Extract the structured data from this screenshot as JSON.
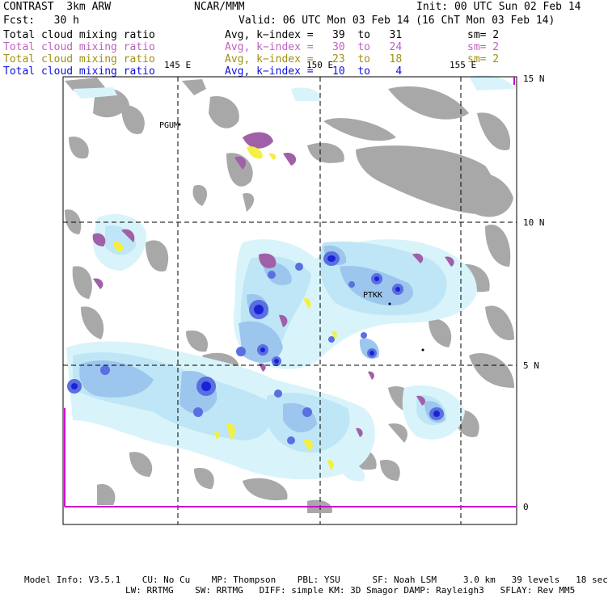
{
  "header": {
    "model": "CONTRAST  3km ARW",
    "center": "NCAR/MMM",
    "init": "Init: 00 UTC Sun 02 Feb 14",
    "fcst": "Fcst:   30 h",
    "valid": "Valid: 06 UTC Mon 03 Feb 14 (16 ChT Mon 03 Feb 14)"
  },
  "fields": [
    {
      "name": "Total cloud mixing ratio",
      "avg": "Avg, k−index =   39  to   31",
      "sm": "sm= 2",
      "color": "#000000"
    },
    {
      "name": "Total cloud mixing ratio",
      "avg": "Avg, k−index =   30  to   24",
      "sm": "sm= 2",
      "color": "#c060c0"
    },
    {
      "name": "Total cloud mixing ratio",
      "avg": "Avg, k−index =   23  to   18",
      "sm": "sm= 2",
      "color": "#a09010"
    },
    {
      "name": "Total cloud mixing ratio",
      "avg": "Avg, k−index =   10  to    4",
      "sm": "",
      "color": "#1010e0"
    }
  ],
  "axes": {
    "lon_labels": [
      "145 E",
      "150 E",
      "155 E"
    ],
    "lat_labels": [
      "15 N",
      "10 N",
      "5 N",
      "0"
    ]
  },
  "stations": [
    {
      "id": "PGUM"
    },
    {
      "id": "PTKK"
    }
  ],
  "footer": {
    "line1": "Model Info: V3.5.1    CU: No Cu    MP: Thompson    PBL: YSU      SF: Noah LSM     3.0 km   39 levels   18 sec",
    "line2": "LW: RRTMG    SW: RRTMG   DIFF: simple KM: 3D Smagor DAMP: Rayleigh3   SFLAY: Rev MM5"
  },
  "colors": {
    "gray": "#a8a8a8",
    "pale": "#d8f4fa",
    "lightblue": "#bfe6f6",
    "midblue": "#9cc6ee",
    "blue": "#5a6fe0",
    "deepblue": "#1a22d8",
    "magenta": "#a060a8",
    "yellow": "#f4f040"
  }
}
